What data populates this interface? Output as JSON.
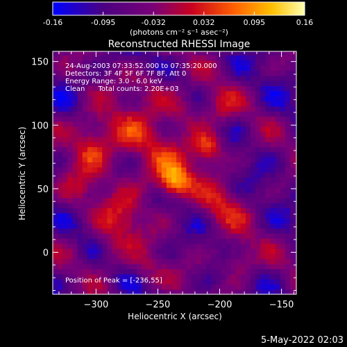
{
  "colorbar": {
    "ticks": [
      "-0.16",
      "-0.095",
      "-0.032",
      "0.032",
      "0.095",
      "0.16"
    ],
    "units": "(photons cm⁻² s⁻¹ asec⁻²)"
  },
  "chart_data": {
    "type": "heatmap",
    "title": "Reconstructed RHESSI Image",
    "xlabel": "Heliocentric X (arcsec)",
    "ylabel": "Heliocentric Y (arcsec)",
    "xlim": [
      -335,
      -138
    ],
    "ylim": [
      -33,
      158
    ],
    "xticks": [
      -300,
      -250,
      -200,
      -150
    ],
    "yticks": [
      0,
      50,
      100,
      150
    ],
    "xtick_labels": [
      "−300",
      "−250",
      "−200",
      "−150"
    ],
    "ytick_labels": [
      "0",
      "50",
      "100",
      "150"
    ],
    "zlim": [
      -0.16,
      0.16
    ],
    "colormap": [
      "#0000ff",
      "#4b0082",
      "#7a0078",
      "#c80020",
      "#ff6000",
      "#ffc000",
      "#ffffb0"
    ],
    "peak": [
      -236,
      55
    ],
    "hotspots": [
      {
        "x": -236,
        "y": 55,
        "amp": 0.16,
        "s": 9
      },
      {
        "x": -210,
        "y": 82,
        "amp": 0.14,
        "s": 9
      },
      {
        "x": -250,
        "y": 66,
        "amp": 0.08,
        "s": 14
      },
      {
        "x": -275,
        "y": 88,
        "amp": 0.09,
        "s": 14
      },
      {
        "x": -300,
        "y": 100,
        "amp": 0.08,
        "s": 12
      },
      {
        "x": -280,
        "y": 25,
        "amp": 0.08,
        "s": 14
      },
      {
        "x": -315,
        "y": 50,
        "amp": 0.06,
        "s": 12
      },
      {
        "x": -200,
        "y": 35,
        "amp": 0.07,
        "s": 14
      },
      {
        "x": -185,
        "y": -5,
        "amp": 0.08,
        "s": 10
      },
      {
        "x": -255,
        "y": 130,
        "amp": 0.06,
        "s": 12
      },
      {
        "x": -230,
        "y": 110,
        "amp": 0.07,
        "s": 12
      },
      {
        "x": -200,
        "y": 115,
        "amp": 0.06,
        "s": 10
      },
      {
        "x": -260,
        "y": -15,
        "amp": 0.05,
        "s": 10
      },
      {
        "x": -305,
        "y": 80,
        "amp": 0.06,
        "s": 10
      },
      {
        "x": -290,
        "y": 0,
        "amp": 0.05,
        "s": 10
      }
    ],
    "annotations": {
      "time": "24-Aug-2003 07:33:52.000 to 07:35:20.000",
      "detectors": "Detectors: 3F 4F 5F 6F 7F 8F, Att 0",
      "energy": "Energy Range: 3.0 - 6.0 keV",
      "clean": "Clean      Total counts: 2.20E+03",
      "peak_label": "Position of Peak = [-236,55]"
    }
  },
  "footer": {
    "date": "5-May-2022 02:03"
  }
}
